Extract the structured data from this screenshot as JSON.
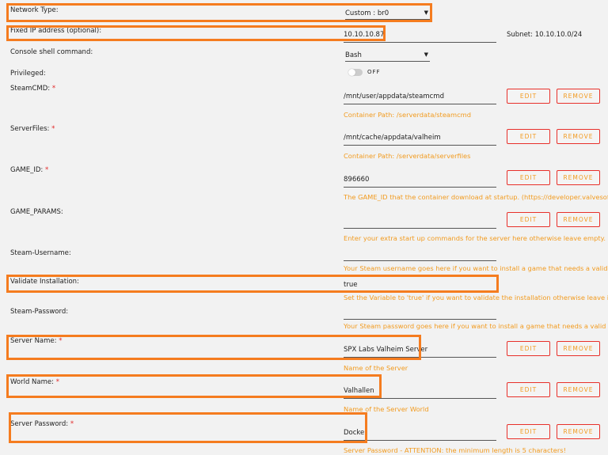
{
  "network": {
    "label": "Network Type:",
    "value": "Custom : br0"
  },
  "fixed_ip": {
    "label": "Fixed IP address (optional):",
    "value": "10.10.10.87",
    "subnet": "Subnet: 10.10.10.0/24"
  },
  "console": {
    "label": "Console shell command:",
    "value": "Bash"
  },
  "privileged": {
    "label": "Privileged:",
    "state": "OFF"
  },
  "buttons": {
    "edit": "EDIT",
    "remove": "REMOVE"
  },
  "required_mark": "*",
  "colors": {
    "accent": "#f29b1f",
    "highlight": "#f57c1f",
    "button_border": "#e8302a"
  },
  "fields": [
    {
      "label": "SteamCMD:",
      "required": true,
      "value": "/mnt/user/appdata/steamcmd",
      "desc": "Container Path: /serverdata/steamcmd",
      "buttons": true
    },
    {
      "label": "ServerFiles:",
      "required": true,
      "value": "/mnt/cache/appdata/valheim",
      "desc": "Container Path: /serverdata/serverfiles",
      "buttons": true
    },
    {
      "label": "GAME_ID:",
      "required": true,
      "value": "896660",
      "desc": "The GAME_ID that the container download at startup. (https://developer.valvesoftware.co",
      "buttons": true
    },
    {
      "label": "GAME_PARAMS:",
      "required": false,
      "value": "",
      "desc": "Enter your extra start up commands for the server here otherwise leave empty.",
      "buttons": true
    },
    {
      "label": "Steam-Username:",
      "required": false,
      "value": "",
      "desc": "Your Steam username goes here if you want to install a game that needs a valid account,",
      "buttons": false
    },
    {
      "label": "Validate Installation:",
      "required": false,
      "value": "true",
      "desc": "Set the Variable to 'true' if you want to validate the installation otherwise leave it blank.",
      "buttons": false
    },
    {
      "label": "Steam-Password:",
      "required": false,
      "value": "",
      "desc": "Your Steam password goes here if you want to install a game that needs a valid account,",
      "buttons": false
    },
    {
      "label": "Server Name:",
      "required": true,
      "value": "SPX Labs Valheim Server",
      "desc": "Name of the Server",
      "buttons": true
    },
    {
      "label": "World Name:",
      "required": true,
      "value": "Valhallen",
      "desc": "Name of the Server World",
      "buttons": true
    },
    {
      "label": "Server Password:",
      "required": true,
      "value": "Docker",
      "desc": "Server Password - ATTENTION: the minimum length is 5 characters!",
      "buttons": true
    }
  ]
}
